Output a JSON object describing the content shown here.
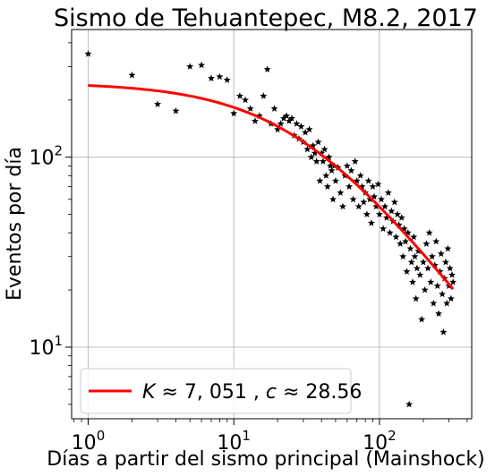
{
  "chart_data": {
    "type": "scatter",
    "title": "Sismo de Tehuantepec, M8.2, 2017",
    "xlabel": "Días a partir del sismo principal (Mainshock)",
    "ylabel": "Eventos por día",
    "xscale": "log",
    "yscale": "log",
    "xlim": [
      0.77,
      430
    ],
    "ylim": [
      4.2,
      470
    ],
    "x_ticks": [
      {
        "base": "10",
        "exp": "0",
        "value": 1
      },
      {
        "base": "10",
        "exp": "1",
        "value": 10
      },
      {
        "base": "10",
        "exp": "2",
        "value": 100
      }
    ],
    "y_ticks": [
      {
        "base": "10",
        "exp": "1",
        "value": 10
      },
      {
        "base": "10",
        "exp": "2",
        "value": 100
      }
    ],
    "grid": true,
    "legend_position": "lower-left",
    "series": [
      {
        "name": "",
        "kind": "scatter",
        "marker": "star",
        "color": "#000000",
        "points": [
          [
            1,
            350
          ],
          [
            2,
            270
          ],
          [
            3,
            190
          ],
          [
            4,
            175
          ],
          [
            5,
            300
          ],
          [
            6,
            305
          ],
          [
            7,
            260
          ],
          [
            8,
            265
          ],
          [
            9,
            255
          ],
          [
            10,
            170
          ],
          [
            11,
            210
          ],
          [
            12,
            200
          ],
          [
            13,
            180
          ],
          [
            14,
            155
          ],
          [
            15,
            165
          ],
          [
            16,
            210
          ],
          [
            17,
            290
          ],
          [
            18,
            150
          ],
          [
            19,
            180
          ],
          [
            20,
            140
          ],
          [
            21,
            150
          ],
          [
            22,
            160
          ],
          [
            23,
            165
          ],
          [
            24,
            155
          ],
          [
            25,
            160
          ],
          [
            26,
            130
          ],
          [
            27,
            150
          ],
          [
            28,
            125
          ],
          [
            29,
            145
          ],
          [
            30,
            120
          ],
          [
            31,
            135
          ],
          [
            32,
            110
          ],
          [
            33,
            140
          ],
          [
            34,
            100
          ],
          [
            35,
            115
          ],
          [
            36,
            105
          ],
          [
            37,
            95
          ],
          [
            38,
            120
          ],
          [
            39,
            75
          ],
          [
            40,
            105
          ],
          [
            41,
            95
          ],
          [
            42,
            110
          ],
          [
            43,
            80
          ],
          [
            44,
            70
          ],
          [
            45,
            100
          ],
          [
            46,
            90
          ],
          [
            47,
            85
          ],
          [
            48,
            60
          ],
          [
            49,
            90
          ],
          [
            50,
            75
          ],
          [
            52,
            88
          ],
          [
            54,
            65
          ],
          [
            56,
            55
          ],
          [
            58,
            80
          ],
          [
            60,
            90
          ],
          [
            62,
            70
          ],
          [
            64,
            85
          ],
          [
            66,
            60
          ],
          [
            68,
            95
          ],
          [
            70,
            75
          ],
          [
            72,
            55
          ],
          [
            74,
            80
          ],
          [
            76,
            70
          ],
          [
            78,
            58
          ],
          [
            80,
            65
          ],
          [
            82,
            50
          ],
          [
            84,
            75
          ],
          [
            86,
            60
          ],
          [
            88,
            45
          ],
          [
            90,
            70
          ],
          [
            92,
            62
          ],
          [
            95,
            55
          ],
          [
            98,
            72
          ],
          [
            100,
            50
          ],
          [
            103,
            60
          ],
          [
            106,
            42
          ],
          [
            109,
            55
          ],
          [
            112,
            48
          ],
          [
            115,
            65
          ],
          [
            118,
            40
          ],
          [
            121,
            52
          ],
          [
            124,
            46
          ],
          [
            127,
            58
          ],
          [
            130,
            38
          ],
          [
            133,
            50
          ],
          [
            136,
            44
          ],
          [
            139,
            35
          ],
          [
            142,
            48
          ],
          [
            145,
            30
          ],
          [
            148,
            42
          ],
          [
            151,
            36
          ],
          [
            154,
            25
          ],
          [
            157,
            40
          ],
          [
            160,
            5
          ],
          [
            163,
            33
          ],
          [
            166,
            28
          ],
          [
            169,
            22
          ],
          [
            172,
            38
          ],
          [
            175,
            30
          ],
          [
            178,
            18
          ],
          [
            181,
            26
          ],
          [
            185,
            32
          ],
          [
            190,
            24
          ],
          [
            195,
            14
          ],
          [
            200,
            28
          ],
          [
            205,
            20
          ],
          [
            210,
            35
          ],
          [
            215,
            26
          ],
          [
            220,
            40
          ],
          [
            225,
            22
          ],
          [
            230,
            30
          ],
          [
            235,
            17
          ],
          [
            240,
            27
          ],
          [
            245,
            36
          ],
          [
            250,
            21
          ],
          [
            255,
            15
          ],
          [
            260,
            25
          ],
          [
            265,
            31
          ],
          [
            270,
            19
          ],
          [
            275,
            12
          ],
          [
            280,
            23
          ],
          [
            285,
            28
          ],
          [
            290,
            17
          ],
          [
            295,
            33
          ],
          [
            300,
            21
          ],
          [
            305,
            26
          ],
          [
            310,
            18
          ],
          [
            315,
            24
          ],
          [
            320,
            22
          ]
        ]
      },
      {
        "name": "$K \\approx 7,051, c \\approx 28.56$",
        "kind": "line",
        "color": "#ff0000",
        "K": 7051,
        "c": 28.56,
        "x_range": [
          1,
          320
        ]
      }
    ],
    "legend": {
      "K": "K",
      "approx": "≈",
      "K_value": "7, 051",
      "c": "c",
      "c_value": "28.56",
      "sep": ", "
    }
  }
}
